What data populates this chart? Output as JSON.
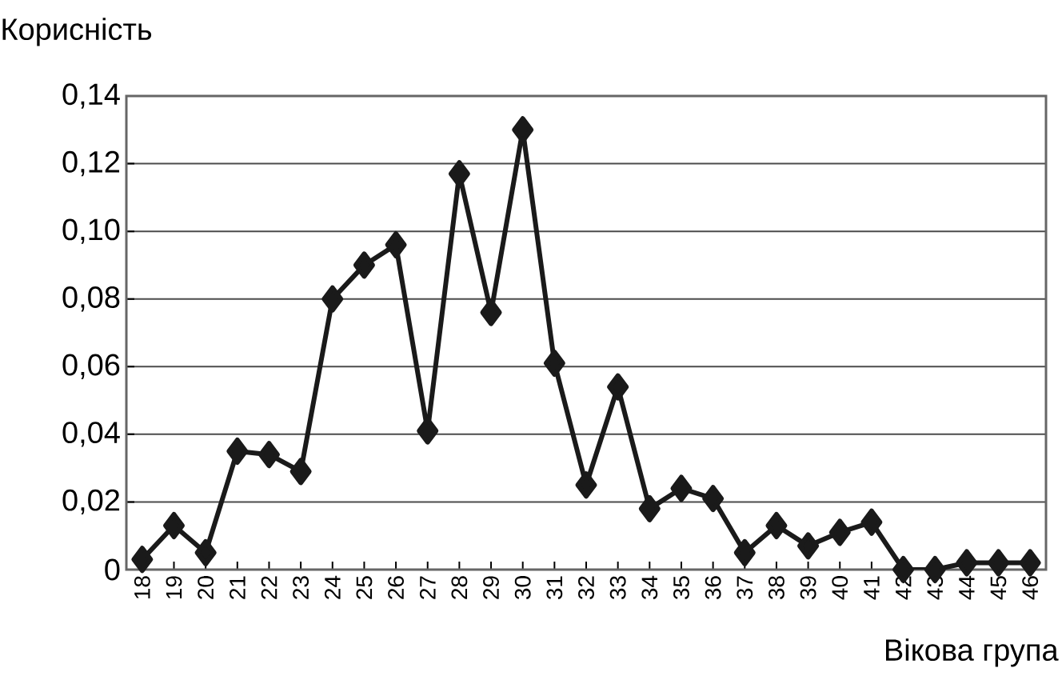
{
  "chart_data": {
    "type": "line",
    "xlabel": "Вікова група",
    "ylabel": "Корисність",
    "categories": [
      "18",
      "19",
      "20",
      "21",
      "22",
      "23",
      "24",
      "25",
      "26",
      "27",
      "28",
      "29",
      "30",
      "31",
      "32",
      "33",
      "34",
      "35",
      "36",
      "37",
      "38",
      "39",
      "40",
      "41",
      "42",
      "43",
      "44",
      "45",
      "46"
    ],
    "series": [
      {
        "color": "#1a1a1a",
        "values": [
          0.003,
          0.013,
          0.005,
          0.035,
          0.034,
          0.029,
          0.08,
          0.09,
          0.096,
          0.041,
          0.117,
          0.076,
          0.13,
          0.061,
          0.025,
          0.054,
          0.018,
          0.024,
          0.021,
          0.005,
          0.013,
          0.007,
          0.011,
          0.014,
          0,
          0,
          0.002,
          0.002,
          0.002
        ]
      }
    ],
    "ylim": [
      0,
      0.14
    ],
    "yticks": [
      {
        "value": 0,
        "label": "0"
      },
      {
        "value": 0.02,
        "label": "0,02"
      },
      {
        "value": 0.04,
        "label": "0,04"
      },
      {
        "value": 0.06,
        "label": "0,06"
      },
      {
        "value": 0.08,
        "label": "0,08"
      },
      {
        "value": 0.1,
        "label": "0,10"
      },
      {
        "value": 0.12,
        "label": "0,12"
      },
      {
        "value": 0.14,
        "label": "0,14"
      }
    ],
    "grid": "y",
    "marker": "diamond",
    "line_style": "solid"
  }
}
